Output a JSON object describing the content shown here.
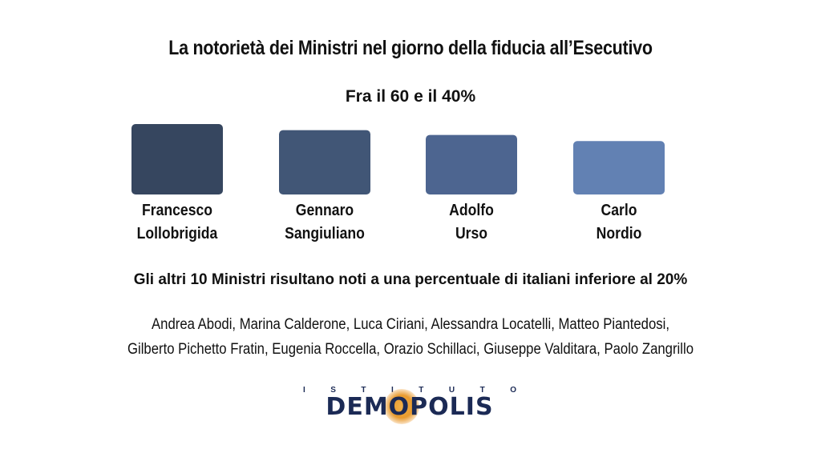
{
  "title": "La notorietà dei Ministri nel giorno della fiducia all’Esecutivo",
  "subtitle": "Fra il 60 e il 40%",
  "chart_data": {
    "type": "bar",
    "categories": [
      [
        "Francesco",
        "Lollobrigida"
      ],
      [
        "Gennaro",
        "Sangiuliano"
      ],
      [
        "Adolfo",
        "Urso"
      ],
      [
        "Carlo",
        "Nordio"
      ]
    ],
    "values": [
      58,
      53,
      49,
      44
    ],
    "ylim": [
      0,
      60
    ],
    "colors": [
      "#36465f",
      "#415676",
      "#4d6590",
      "#6281b3"
    ],
    "grid": false,
    "legend": "none"
  },
  "note": "Gli altri 10 Ministri risultano noti a una percentuale di italiani inferiore al 20%",
  "others": [
    "Andrea Abodi, Marina Calderone, Luca Ciriani, Alessandra Locatelli, Matteo Piantedosi,",
    "Gilberto Pichetto Fratin, Eugenia Roccella, Orazio Schillaci, Giuseppe Valditara, Paolo Zangrillo"
  ],
  "logo": {
    "top_letters": [
      "I",
      "S",
      "T",
      "I",
      "T",
      "U",
      "T",
      "O"
    ],
    "word": "DEMOPOLIS"
  }
}
